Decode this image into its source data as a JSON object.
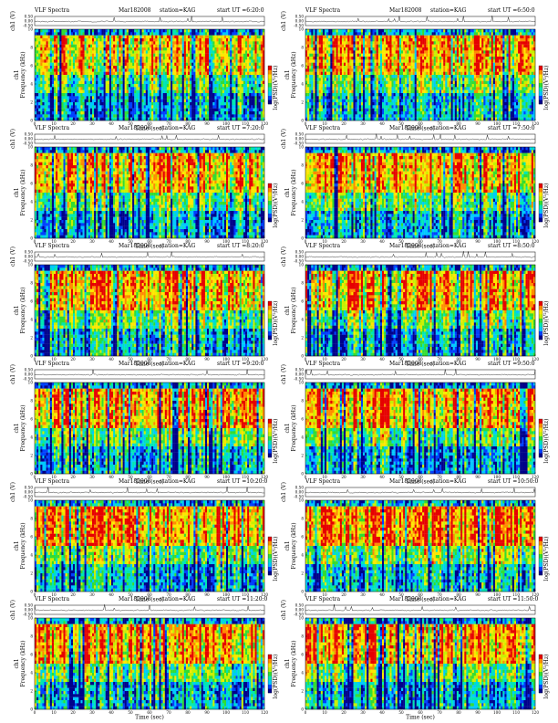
{
  "chart_data": {
    "type": "heatmap",
    "x_axis": {
      "label": "Time (sec)",
      "range": [
        0,
        120
      ],
      "ticks": [
        "0",
        "10",
        "20",
        "30",
        "40",
        "50",
        "60",
        "70",
        "80",
        "90",
        "100",
        "110",
        "120"
      ]
    },
    "y_axis_spectrogram": {
      "label_line1": "ch1",
      "label_line2": "Frequency (kHz)",
      "range": [
        0,
        10
      ],
      "ticks": [
        "0",
        "2",
        "4",
        "6",
        "8",
        "10"
      ]
    },
    "y_axis_waveform": {
      "label": "ch1 (V)",
      "ticks": [
        "-0.50",
        "0.00",
        "0.50"
      ]
    },
    "colorbar": {
      "label": "log(PSD)(V²/Hz)",
      "colors": [
        "#00008a",
        "#0040ff",
        "#00c8ff",
        "#00e6b4",
        "#32dc32",
        "#c8f000",
        "#ffe600",
        "#ff8c00",
        "#e60000"
      ]
    },
    "panels": [
      {
        "title": "VLF Spectra",
        "date": "Mar182008",
        "station": "station=KAG",
        "start": "start UT =6:20:0",
        "intensity": 0.45
      },
      {
        "title": "VLF Spectra",
        "date": "Mar182008",
        "station": "station=KAG",
        "start": "start UT =6:50:0",
        "intensity": 0.5
      },
      {
        "title": "VLF Spectra",
        "date": "Mar182008",
        "station": "station=KAG",
        "start": "start UT =7:20:0",
        "intensity": 0.55
      },
      {
        "title": "VLF Spectra",
        "date": "Mar182008",
        "station": "station=KAG",
        "start": "start UT =7:50:0",
        "intensity": 0.52
      },
      {
        "title": "VLF Spectra",
        "date": "Mar182008",
        "station": "station=KAG",
        "start": "start UT =8:20:0",
        "intensity": 0.5
      },
      {
        "title": "VLF Spectra",
        "date": "Mar182008",
        "station": "station=KAG",
        "start": "start UT =8:50:0",
        "intensity": 0.56
      },
      {
        "title": "VLF Spectra",
        "date": "Mar182008",
        "station": "station=KAG",
        "start": "start UT =9:20:0",
        "intensity": 0.58
      },
      {
        "title": "VLF Spectra",
        "date": "Mar182008",
        "station": "station=KAG",
        "start": "start UT =9:50:0",
        "intensity": 0.62
      },
      {
        "title": "VLF Spectra",
        "date": "Mar182008",
        "station": "station=KAG",
        "start": "start UT =10:20:0",
        "intensity": 0.66
      },
      {
        "title": "VLF Spectra",
        "date": "Mar182008",
        "station": "station=KAG",
        "start": "start UT =10:50:0",
        "intensity": 0.66
      },
      {
        "title": "VLF Spectra",
        "date": "Mar182008",
        "station": "station=KAG",
        "start": "start UT =11:20:0",
        "intensity": 0.6
      },
      {
        "title": "VLF Spectra",
        "date": "Mar182008",
        "station": "station=KAG",
        "start": "start UT =11:50:0",
        "intensity": 0.6
      }
    ]
  }
}
